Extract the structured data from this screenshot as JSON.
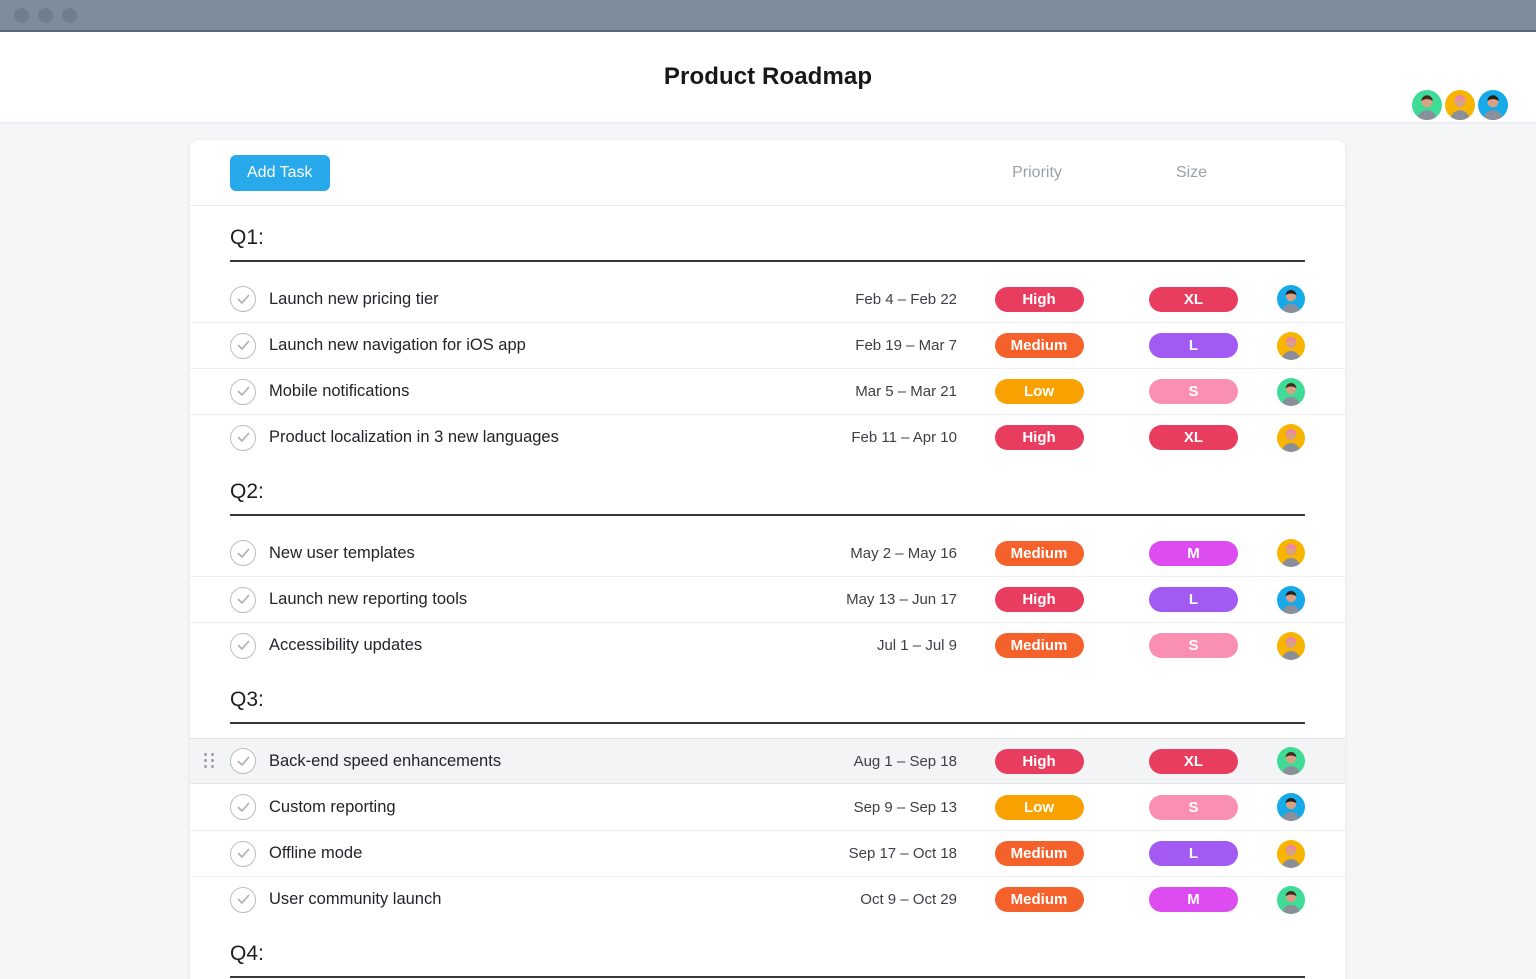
{
  "chrome": {
    "topbar_color": "#7e8c9b",
    "window_dots": 3
  },
  "header": {
    "title": "Product Roadmap",
    "avatars": [
      "green-member",
      "yellow-member",
      "blue-member"
    ]
  },
  "toolbar": {
    "add_task_label": "Add Task",
    "priority_column_label": "Priority",
    "size_column_label": "Size"
  },
  "colors": {
    "accent_blue": "#27a9eb",
    "priority": {
      "High": "#e93d5f",
      "Medium": "#f4612a",
      "Low": "#f8a100"
    },
    "size": {
      "XL": "#e93d5f",
      "L": "#a25af2",
      "M": "#dd4cf0",
      "S": "#f98fb1"
    },
    "avatars": {
      "green-member": {
        "bg": "#3edc97",
        "hair": "#3e2d23"
      },
      "yellow-member": {
        "bg": "#f8b500",
        "hair": "#ee82b2"
      },
      "blue-member": {
        "bg": "#16aae8",
        "hair": "#26201d"
      }
    }
  },
  "sections": [
    {
      "label": "Q1:",
      "tasks": [
        {
          "title": "Launch new pricing tier",
          "dates": "Feb 4 – Feb 22",
          "priority": "High",
          "size": "XL",
          "avatar": "blue-member",
          "highlighted": false
        },
        {
          "title": "Launch new navigation for iOS app",
          "dates": "Feb 19 – Mar 7",
          "priority": "Medium",
          "size": "L",
          "avatar": "yellow-member",
          "highlighted": false
        },
        {
          "title": "Mobile notifications",
          "dates": "Mar 5 – Mar 21",
          "priority": "Low",
          "size": "S",
          "avatar": "green-member",
          "highlighted": false
        },
        {
          "title": "Product localization in 3 new languages",
          "dates": "Feb 11 – Apr 10",
          "priority": "High",
          "size": "XL",
          "avatar": "yellow-member",
          "highlighted": false
        }
      ]
    },
    {
      "label": "Q2:",
      "tasks": [
        {
          "title": "New user templates",
          "dates": "May 2 – May 16",
          "priority": "Medium",
          "size": "M",
          "avatar": "yellow-member",
          "highlighted": false
        },
        {
          "title": "Launch new reporting tools",
          "dates": "May 13 – Jun 17",
          "priority": "High",
          "size": "L",
          "avatar": "blue-member",
          "highlighted": false
        },
        {
          "title": "Accessibility updates",
          "dates": "Jul 1 – Jul 9",
          "priority": "Medium",
          "size": "S",
          "avatar": "yellow-member",
          "highlighted": false
        }
      ]
    },
    {
      "label": "Q3:",
      "tasks": [
        {
          "title": "Back-end speed enhancements",
          "dates": "Aug 1 – Sep 18",
          "priority": "High",
          "size": "XL",
          "avatar": "green-member",
          "highlighted": true
        },
        {
          "title": "Custom reporting",
          "dates": "Sep 9 – Sep 13",
          "priority": "Low",
          "size": "S",
          "avatar": "blue-member",
          "highlighted": false
        },
        {
          "title": "Offline mode",
          "dates": "Sep 17 – Oct 18",
          "priority": "Medium",
          "size": "L",
          "avatar": "yellow-member",
          "highlighted": false
        },
        {
          "title": "User community launch",
          "dates": "Oct 9 – Oct 29",
          "priority": "Medium",
          "size": "M",
          "avatar": "green-member",
          "highlighted": false
        }
      ]
    },
    {
      "label": "Q4:",
      "tasks": []
    }
  ]
}
